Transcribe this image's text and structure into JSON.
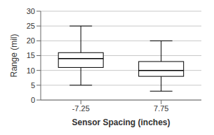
{
  "chart_data": {
    "type": "box",
    "categories": [
      "-7.25",
      "7.75"
    ],
    "whisker_low": [
      5,
      3
    ],
    "q1": [
      11,
      8
    ],
    "median": [
      14,
      10
    ],
    "q3": [
      16,
      13
    ],
    "whisker_high": [
      25,
      20
    ],
    "ylabel": "Range (mil)",
    "xlabel": "Sensor Spacing (inches)",
    "ylim": [
      0,
      30
    ],
    "yticks": [
      0,
      5,
      10,
      15,
      20,
      25,
      30
    ],
    "color": "#ffffff",
    "grid": true
  }
}
